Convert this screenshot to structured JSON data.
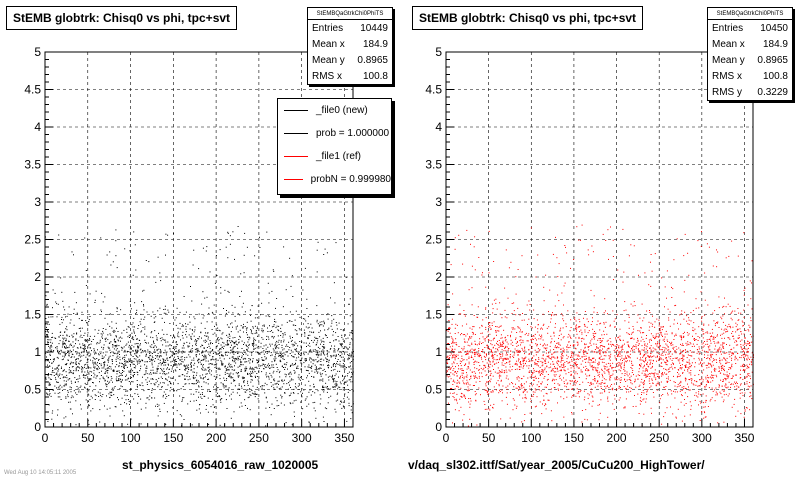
{
  "colors": {
    "new": "#000000",
    "ref": "#ff0000",
    "grid": "#000000",
    "frame": "#000000"
  },
  "left_panel": {
    "title": "StEMB globtrk: Chisq0 vs phi, tpc+svt",
    "stats": {
      "header": "StEMBQaGtrkChi0PhiTS",
      "rows": [
        {
          "label": "Entries",
          "value": "10449"
        },
        {
          "label": "Mean x",
          "value": "184.9"
        },
        {
          "label": "Mean y",
          "value": "0.8965"
        },
        {
          "label": "RMS x",
          "value": "100.8"
        }
      ]
    },
    "legend": [
      {
        "label": "_file0 (new)",
        "color": "#000000"
      },
      {
        "label": "prob = 1.000000",
        "color": "#000000"
      },
      {
        "label": "_file1 (ref)",
        "color": "#ff0000"
      },
      {
        "label": "probN = 0.999980",
        "color": "#ff0000"
      }
    ],
    "caption": "st_physics_6054016_raw_1020005",
    "footnote": "Wed Aug 10 14:05:11 2005"
  },
  "right_panel": {
    "title": "StEMB globtrk: Chisq0 vs phi, tpc+svt",
    "stats": {
      "header": "StEMBQaGtrkChi0PhiTS",
      "rows": [
        {
          "label": "Entries",
          "value": "10450"
        },
        {
          "label": "Mean x",
          "value": "184.9"
        },
        {
          "label": "Mean y",
          "value": "0.8965"
        },
        {
          "label": "RMS x",
          "value": "100.8"
        },
        {
          "label": "RMS y",
          "value": "0.3229"
        }
      ]
    },
    "caption": "v/daq_sl302.ittf/Sat/year_2005/CuCu200_HighTower/"
  },
  "chart_data": [
    {
      "type": "scatter",
      "title": "StEMB globtrk: Chisq0 vs phi, tpc+svt",
      "xlim": [
        0,
        360
      ],
      "ylim": [
        0,
        5
      ],
      "xticks": [
        0,
        50,
        100,
        150,
        200,
        250,
        300,
        350
      ],
      "yticks": [
        0,
        0.5,
        1,
        1.5,
        2,
        2.5,
        3,
        3.5,
        4,
        4.5,
        5
      ],
      "grid": true,
      "series": [
        {
          "name": "_file0 (new)",
          "color": "#000000",
          "entries": 10449,
          "mean_x": 184.9,
          "mean_y": 0.8965,
          "rms_x": 100.8
        }
      ],
      "legend_position": "top-right"
    },
    {
      "type": "scatter",
      "title": "StEMB globtrk: Chisq0 vs phi, tpc+svt",
      "xlim": [
        0,
        360
      ],
      "ylim": [
        0,
        5
      ],
      "xticks": [
        0,
        50,
        100,
        150,
        200,
        250,
        300,
        350
      ],
      "yticks": [
        0,
        0.5,
        1,
        1.5,
        2,
        2.5,
        3,
        3.5,
        4,
        4.5,
        5
      ],
      "grid": true,
      "series": [
        {
          "name": "_file1 (ref)",
          "color": "#ff0000",
          "entries": 10450,
          "mean_x": 184.9,
          "mean_y": 0.8965,
          "rms_x": 100.8,
          "rms_y": 0.3229
        }
      ]
    }
  ]
}
